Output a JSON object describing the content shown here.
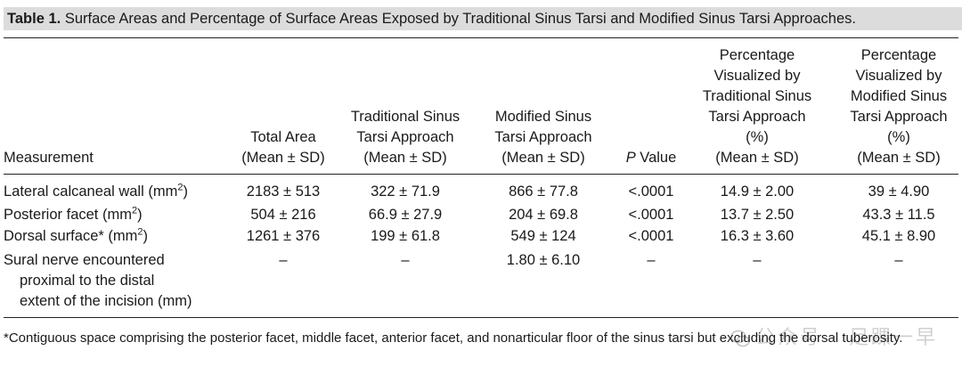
{
  "caption": {
    "label": "Table 1.",
    "text": "Surface Areas and Percentage of Surface Areas Exposed by Traditional Sinus Tarsi and Modified Sinus Tarsi Approaches."
  },
  "headers": {
    "measurement": "Measurement",
    "total_area": [
      "Total Area",
      "(Mean ± SD)"
    ],
    "traditional": [
      "Traditional Sinus",
      "Tarsi Approach",
      "(Mean ± SD)"
    ],
    "modified": [
      "Modified Sinus",
      "Tarsi Approach",
      "(Mean ± SD)"
    ],
    "p_value_italic": "P",
    "p_value_rest": " Value",
    "pct_traditional": [
      "Percentage",
      "Visualized by",
      "Traditional Sinus",
      "Tarsi Approach",
      "(%)",
      "(Mean ± SD)"
    ],
    "pct_modified": [
      "Percentage",
      "Visualized by",
      "Modified Sinus",
      "Tarsi Approach",
      "(%)",
      "(Mean ± SD)"
    ]
  },
  "rows": [
    {
      "measurement": "Lateral calcaneal wall (mm",
      "sup": "2",
      "close": ")",
      "total_area": "2183 ± 513",
      "traditional": "322 ± 71.9",
      "modified": "866 ± 77.8",
      "p_value": "<.0001",
      "pct_traditional": "14.9 ± 2.00",
      "pct_modified": "39 ± 4.90"
    },
    {
      "measurement": "Posterior facet (mm",
      "sup": "2",
      "close": ")",
      "total_area": "504 ± 216",
      "traditional": "66.9 ± 27.9",
      "modified": "204 ± 69.8",
      "p_value": "<.0001",
      "pct_traditional": "13.7 ± 2.50",
      "pct_modified": "43.3 ± 11.5"
    },
    {
      "measurement": "Dorsal surface* (mm",
      "sup": "2",
      "close": ")",
      "total_area": "1261 ± 376",
      "traditional": "199 ± 61.8",
      "modified": "549 ± 124",
      "p_value": "<.0001",
      "pct_traditional": "16.3 ± 3.60",
      "pct_modified": "45.1 ± 8.90"
    },
    {
      "measurement_lines": [
        "Sural nerve encountered",
        "proximal to the distal",
        "extent of the incision (mm)"
      ],
      "total_area": "–",
      "traditional": "–",
      "modified": "1.80 ± 6.10",
      "p_value": "–",
      "pct_traditional": "–",
      "pct_modified": "–"
    }
  ],
  "footnote": "*Contiguous space comprising the posterior facet, middle facet, anterior facet, and nonarticular floor of the sinus tarsi but excluding the dorsal tuberosity.",
  "watermark": "公众号 · 足踝一早"
}
